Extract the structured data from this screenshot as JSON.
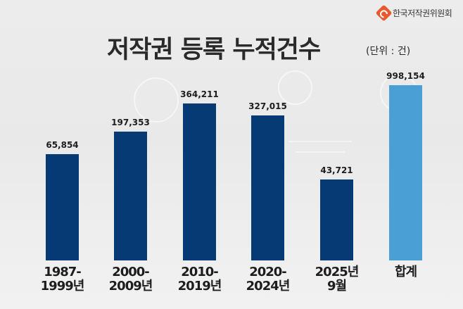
{
  "brand": {
    "name": "한국저작권위원회",
    "logo_icon": "copyright-commission-logo",
    "logo_color": "#e8592e"
  },
  "header": {
    "title": "저작권 등록 누적건수",
    "unit": "(단위 : 건)"
  },
  "colors": {
    "period_bar": "#053a75",
    "total_bar": "#4aa0d5"
  },
  "bars": [
    {
      "label": "1987-\n1999년",
      "value_label": "65,854"
    },
    {
      "label": "2000-\n2009년",
      "value_label": "197,353"
    },
    {
      "label": "2010-\n2019년",
      "value_label": "364,211"
    },
    {
      "label": "2020-\n2024년",
      "value_label": "327,015"
    },
    {
      "label": "2025년\n9월",
      "value_label": "43,721"
    },
    {
      "label": "합계",
      "value_label": "998,154"
    }
  ],
  "chart_data": {
    "type": "bar",
    "title": "저작권 등록 누적건수",
    "subtitle": "(단위 : 건)",
    "categories": [
      "1987-1999년",
      "2000-2009년",
      "2010-2019년",
      "2020-2024년",
      "2025년 9월",
      "합계"
    ],
    "values": [
      65854,
      197353,
      364211,
      327015,
      43721,
      998154
    ],
    "xlabel": "",
    "ylabel": "건",
    "grid": false,
    "legend": "none",
    "note": "Bars are not drawn to linear scale; 합계 (total) bar highlighted in light blue"
  }
}
